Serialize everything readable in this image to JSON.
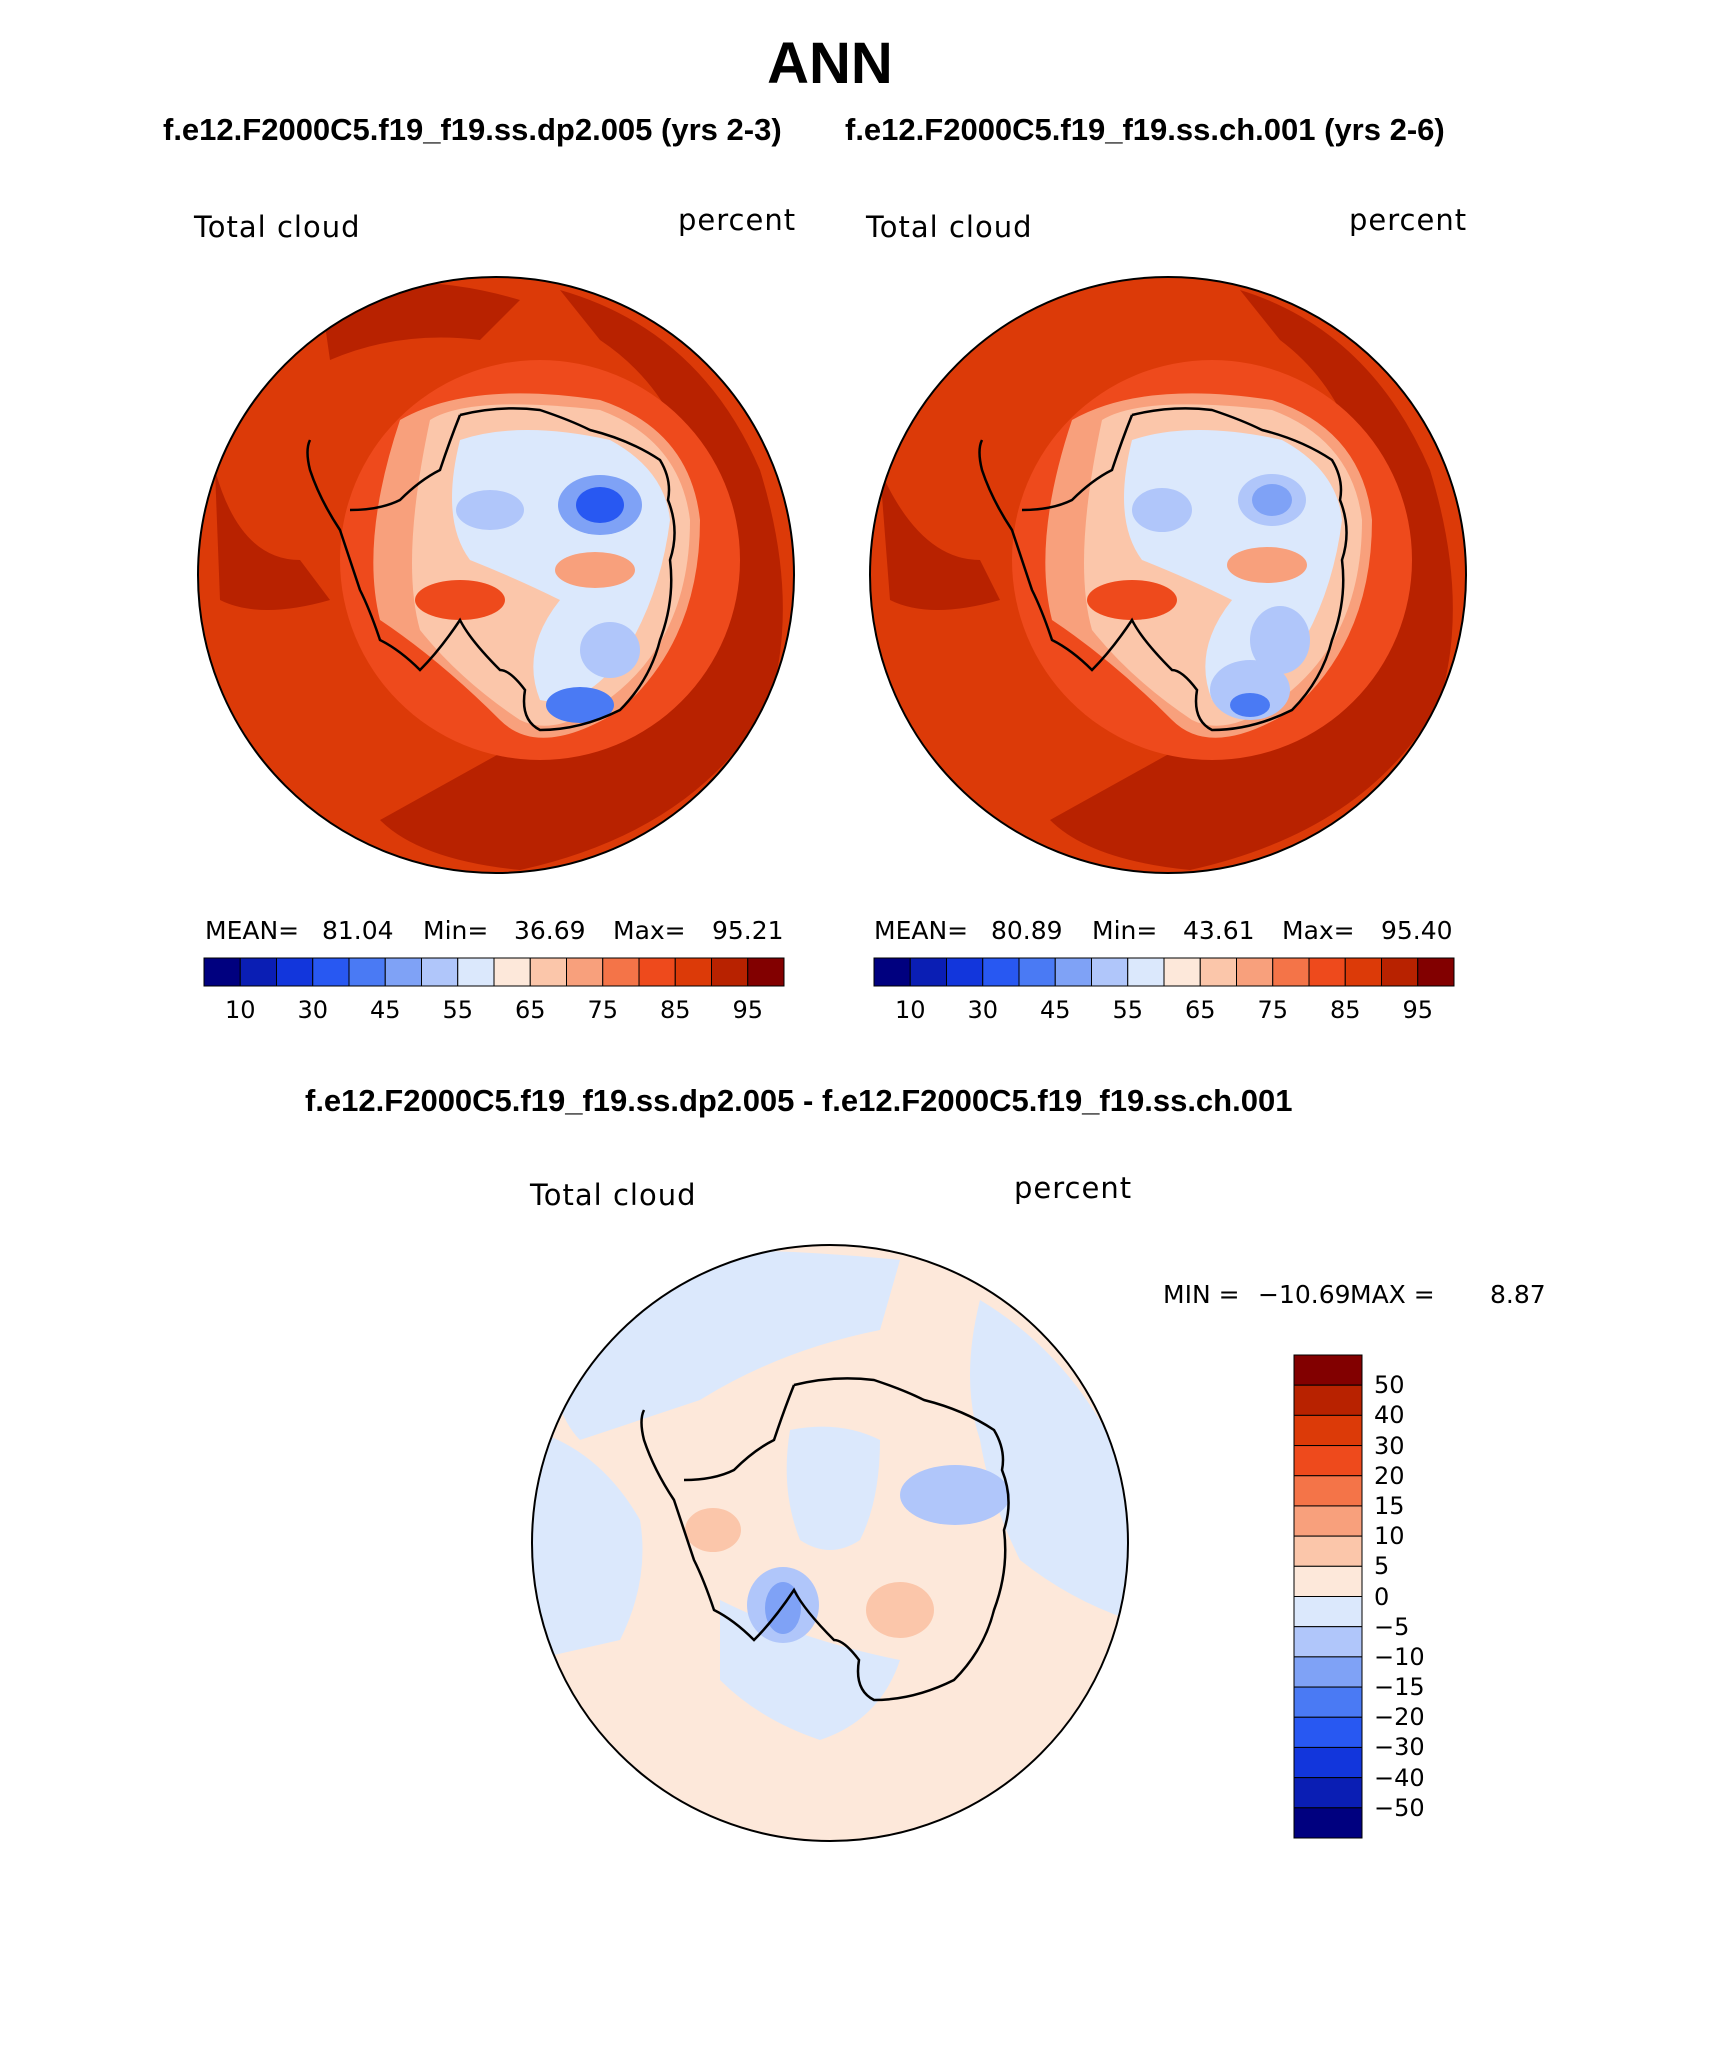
{
  "title": "ANN",
  "subtitle_left": "f.e12.F2000C5.f19_f19.ss.dp2.005 (yrs 2-3)",
  "subtitle_right": "f.e12.F2000C5.f19_f19.ss.ch.001 (yrs 2-6)",
  "diff_title": "f.e12.F2000C5.f19_f19.ss.dp2.005 - f.e12.F2000C5.f19_f19.ss.ch.001",
  "panels": [
    {
      "variable": "Total cloud",
      "units": "percent",
      "mean_label": "MEAN=",
      "mean": "81.04",
      "min_label": "Min=",
      "min": "36.69",
      "max_label": "Max=",
      "max": "95.21"
    },
    {
      "variable": "Total cloud",
      "units": "percent",
      "mean_label": "MEAN=",
      "mean": "80.89",
      "min_label": "Min=",
      "min": "43.61",
      "max_label": "Max=",
      "max": "95.40"
    }
  ],
  "diff_panel": {
    "variable": "Total cloud",
    "units": "percent",
    "min_label": "MIN =",
    "min": "−10.69",
    "max_label": "MAX =",
    "max": "8.87"
  },
  "colorbar_abs": {
    "colors": [
      "#00007f",
      "#0a1eb4",
      "#1236dc",
      "#2858f2",
      "#4a7af4",
      "#7fa2f6",
      "#b0c6fa",
      "#dbe8fc",
      "#fde8da",
      "#fbc6aa",
      "#f8a07c",
      "#f47448",
      "#ee4a1c",
      "#dc3a08",
      "#b82200",
      "#820000"
    ],
    "labels": [
      "10",
      "30",
      "45",
      "55",
      "65",
      "75",
      "85",
      "95"
    ]
  },
  "colorbar_diff": {
    "colors": [
      "#00007f",
      "#0a1eb4",
      "#1236dc",
      "#2858f2",
      "#4a7af4",
      "#7fa2f6",
      "#b0c6fa",
      "#dbe8fc",
      "#fde8da",
      "#fbc6aa",
      "#f8a07c",
      "#f47448",
      "#ee4a1c",
      "#dc3a08",
      "#b82200",
      "#820000"
    ],
    "labels": [
      "−50",
      "−40",
      "−30",
      "−20",
      "−15",
      "−10",
      "−5",
      "0",
      "5",
      "10",
      "15",
      "20",
      "30",
      "40",
      "50"
    ]
  }
}
